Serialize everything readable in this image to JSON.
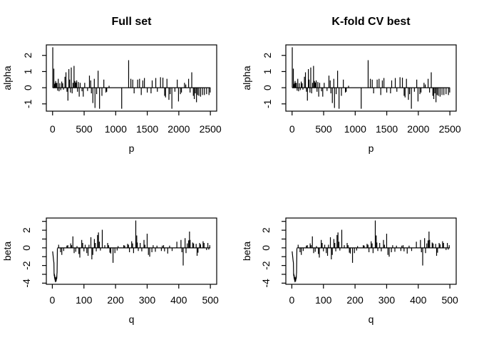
{
  "figure": {
    "background": "#ffffff",
    "foreground": "#000000"
  },
  "chart_data": {
    "layout": "2x2 grid of R base-graphics spike plots; both columns display identical data; grid off; no legend",
    "column_titles": [
      "Full set",
      "K-fold CV best"
    ],
    "rows": [
      {
        "type": "bar",
        "name": "alpha-coefficients",
        "title": "",
        "xlabel": "p",
        "ylabel": "alpha",
        "xticks": [
          0,
          500,
          1000,
          1500,
          2000,
          2500
        ],
        "yticks": [
          -1,
          0,
          1,
          2
        ],
        "ytick_minor": [],
        "xlim": [
          -99,
          2600
        ],
        "ylim": [
          -1.45,
          2.65
        ],
        "zero_line": true,
        "zero_span": [
          1,
          2500
        ],
        "x": [
          3,
          20,
          32,
          40,
          48,
          57,
          68,
          80,
          90,
          103,
          115,
          130,
          145,
          160,
          172,
          196,
          212,
          228,
          243,
          258,
          270,
          283,
          296,
          310,
          324,
          340,
          355,
          368,
          382,
          395,
          408,
          422,
          437,
          466,
          486,
          509,
          554,
          584,
          604,
          615,
          638,
          661,
          672,
          698,
          721,
          744,
          782,
          812,
          845,
          858,
          895,
          1095,
          1205,
          1240,
          1270,
          1292,
          1348,
          1378,
          1405,
          1430,
          1455,
          1500,
          1560,
          1578,
          1635,
          1660,
          1710,
          1748,
          1775,
          1790,
          1812,
          1843,
          1862,
          1890,
          1938,
          1975,
          1995,
          2025,
          2042,
          2090,
          2110,
          2155,
          2178,
          2205,
          2230,
          2245,
          2262,
          2280,
          2298,
          2318,
          2345,
          2375,
          2405,
          2440,
          2478,
          2497
        ],
        "values": [
          2.5,
          1.18,
          0.22,
          0.3,
          0.42,
          0.28,
          0.3,
          -0.18,
          0.55,
          -0.22,
          0.28,
          -0.15,
          0.38,
          0.28,
          -0.12,
          0.68,
          0.95,
          -0.25,
          -0.8,
          1.15,
          0.5,
          -0.3,
          1.25,
          -0.35,
          0.3,
          1.35,
          0.42,
          0.32,
          0.45,
          -0.25,
          0.35,
          -0.55,
          0.3,
          -0.22,
          -0.55,
          0.3,
          -0.2,
          0.75,
          0.45,
          -0.35,
          -0.95,
          0.55,
          -1.25,
          -0.4,
          1.05,
          -1.3,
          -0.5,
          0.5,
          -0.3,
          -0.25,
          0.12,
          -1.3,
          1.7,
          0.55,
          0.5,
          -0.35,
          0.5,
          0.55,
          -0.45,
          0.45,
          0.6,
          -0.3,
          -0.35,
          0.45,
          0.6,
          -0.25,
          0.65,
          0.62,
          -0.5,
          -0.6,
          0.55,
          -0.75,
          -0.4,
          -1.3,
          -0.25,
          0.5,
          -0.85,
          -0.4,
          -0.3,
          0.3,
          0.2,
          0.55,
          -0.3,
          0.95,
          -0.5,
          -0.7,
          -0.35,
          -0.9,
          -0.45,
          -0.5,
          -0.55,
          -0.45,
          -0.45,
          -0.4,
          -0.45,
          -0.3
        ]
      },
      {
        "type": "bar",
        "name": "beta-coefficients",
        "title": "",
        "xlabel": "q",
        "ylabel": "beta",
        "xticks": [
          0,
          100,
          200,
          300,
          400,
          500
        ],
        "yticks": [
          -4,
          -2,
          0,
          2
        ],
        "ytick_minor": [
          -3,
          -1,
          1,
          3
        ],
        "xlim": [
          -19,
          520
        ],
        "ylim": [
          -4.13,
          3.38
        ],
        "zero_line": false,
        "zero_span": [
          16,
          500
        ],
        "intro_line": {
          "x": [
            1,
            2,
            3,
            4,
            5,
            5.5,
            6,
            6.5,
            7,
            7.5,
            8,
            8.5,
            9,
            9.5,
            10,
            10.5,
            11,
            11.5,
            12,
            12.5,
            13,
            13.5,
            14,
            14.5,
            15,
            16
          ],
          "y": [
            -0.4,
            -0.75,
            -1.1,
            -1.45,
            -1.7,
            -2.9,
            -3.2,
            -2.95,
            -3.45,
            -3.1,
            -3.6,
            -3.3,
            -3.75,
            -3.4,
            -3.9,
            -3.5,
            -3.7,
            -3.35,
            -3.8,
            -3.45,
            -3.6,
            -3.2,
            -3.5,
            -3.0,
            -2.8,
            -0.05
          ]
        },
        "x": [
          20,
          26,
          30,
          36,
          46,
          49,
          58,
          61,
          65,
          69,
          74,
          78,
          84,
          87,
          93,
          96,
          100,
          104,
          109,
          113,
          116,
          122,
          125,
          128,
          133,
          136,
          139,
          143,
          146,
          149,
          152,
          158,
          166,
          175,
          178,
          182,
          185,
          192,
          198,
          205,
          208,
          226,
          229,
          238,
          241,
          244,
          251,
          254,
          257,
          264,
          267,
          269,
          272,
          278,
          283,
          290,
          293,
          300,
          304,
          308,
          315,
          319,
          326,
          331,
          345,
          348,
          352,
          355,
          365,
          371,
          379,
          394,
          407,
          410,
          414,
          420,
          423,
          427,
          431,
          434,
          436,
          444,
          447,
          455,
          458,
          461,
          466,
          469,
          477,
          480,
          488,
          492,
          495,
          498
        ],
        "values": [
          0.35,
          -0.5,
          -0.8,
          -0.35,
          0.25,
          0.3,
          0.5,
          0.3,
          1.3,
          -0.6,
          -0.45,
          0.2,
          -0.7,
          -1.1,
          0.9,
          0.55,
          -0.4,
          0.35,
          -0.6,
          -0.9,
          0.35,
          1.2,
          -1.3,
          -0.8,
          1.0,
          0.55,
          -0.4,
          1.45,
          1.75,
          0.7,
          -0.3,
          2.05,
          0.3,
          0.55,
          0.3,
          -0.55,
          -0.65,
          -1.7,
          -0.6,
          -0.3,
          0.2,
          0.3,
          0.25,
          0.45,
          0.35,
          -0.5,
          0.75,
          0.5,
          -0.6,
          3.1,
          1.4,
          0.6,
          -0.35,
          0.55,
          -0.4,
          0.9,
          0.35,
          1.6,
          -0.8,
          -1.0,
          -0.5,
          0.3,
          -0.45,
          0.25,
          -0.35,
          0.25,
          0.3,
          -0.4,
          -0.65,
          0.25,
          -0.35,
          0.7,
          0.9,
          -0.5,
          -2.0,
          1.1,
          -0.6,
          0.5,
          0.85,
          1.85,
          0.9,
          0.6,
          0.5,
          0.45,
          -0.9,
          -0.55,
          0.55,
          0.4,
          0.75,
          0.55,
          -0.25,
          0.55,
          -0.2,
          0.3
        ]
      }
    ]
  }
}
